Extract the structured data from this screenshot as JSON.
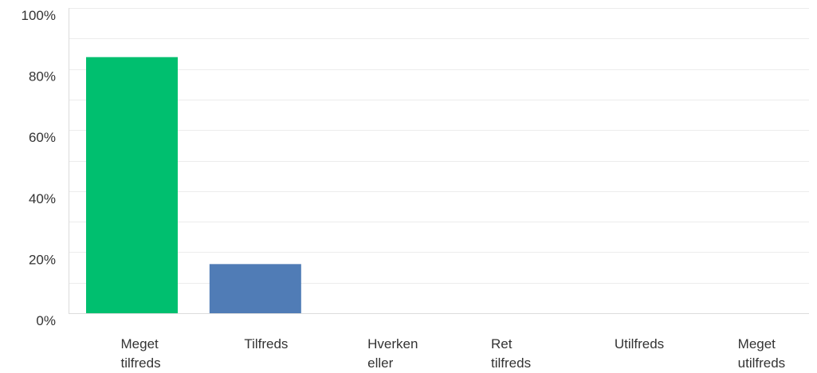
{
  "chart_data": {
    "type": "bar",
    "categories": [
      [
        "Meget",
        "tilfreds"
      ],
      [
        "Tilfreds"
      ],
      [
        "Hverken",
        "eller"
      ],
      [
        "Ret",
        "tilfreds"
      ],
      [
        "Utilfreds"
      ],
      [
        "Meget",
        "utilfreds"
      ]
    ],
    "values": [
      83.9,
      16.1,
      0,
      0,
      0,
      0
    ],
    "bar_colors": [
      "#00bf6f",
      "#507cb6",
      "#6bc8cd",
      "#f05b24",
      "#f9be00",
      "#ff8b4f"
    ],
    "ylim": [
      0,
      100
    ],
    "yticks": [
      "0%",
      "20%",
      "40%",
      "60%",
      "80%",
      "100%"
    ],
    "ytick_values": [
      0,
      20,
      40,
      60,
      80,
      100
    ],
    "grid": true,
    "minor_grid": true,
    "title": "",
    "xlabel": "",
    "ylabel": ""
  }
}
